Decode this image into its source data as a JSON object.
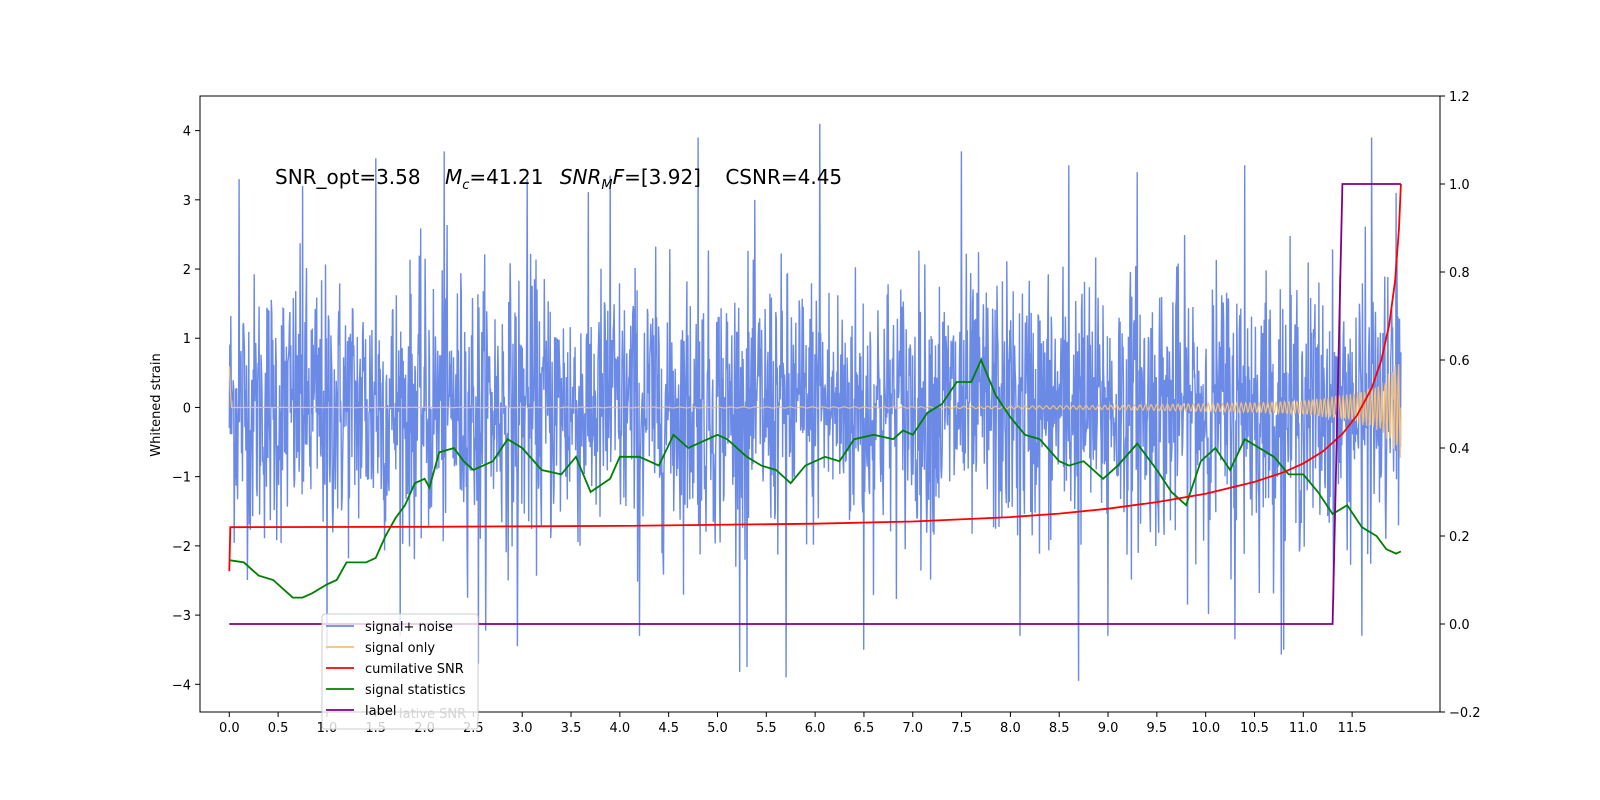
{
  "chart_data": {
    "type": "line",
    "title": "",
    "annotation": {
      "snr_opt": "SNR_opt=3.58",
      "mc_symbol": "M",
      "mc_sub": "c",
      "mc_value": "=41.21",
      "snrmf_symbol": "SNR",
      "snrmf_sub": "M",
      "snrmf_tail": "F",
      "snrmf_value": "=[3.92]",
      "csnr": "CSNR=4.45"
    },
    "ylabel": "Whitened strain",
    "xlabel": "",
    "x_ticks": [
      "0.0",
      "0.5",
      "1.0",
      "1.5",
      "2.0",
      "2.5",
      "3.0",
      "3.5",
      "4.0",
      "4.5",
      "5.0",
      "5.5",
      "6.0",
      "6.5",
      "7.0",
      "7.5",
      "8.0",
      "8.5",
      "9.0",
      "9.5",
      "10.0",
      "10.5",
      "11.0",
      "11.5"
    ],
    "y_left_ticks": [
      "−4",
      "−3",
      "−2",
      "−1",
      "0",
      "1",
      "2",
      "3",
      "4"
    ],
    "y_right_ticks": [
      "−0.2",
      "0.0",
      "0.2",
      "0.4",
      "0.6",
      "0.8",
      "1.0",
      "1.2"
    ],
    "xlim": [
      -0.3,
      12.4
    ],
    "ylim_left": [
      -4.4,
      4.5
    ],
    "ylim_right": [
      -0.2,
      1.2
    ],
    "grid": false,
    "legend_position": "lower-left",
    "legend": [
      {
        "label": "signal+ noise",
        "color": "#6b8ae6"
      },
      {
        "label": "signal only",
        "color": "#f5c07a"
      },
      {
        "label": "cumilative SNR",
        "color": "#ff0000"
      },
      {
        "label": "signal statistics",
        "color": "#008000"
      },
      {
        "label": "label",
        "color": "#800080"
      }
    ],
    "legend_ghost_text": "lative SNR",
    "series": [
      {
        "name": "signal+ noise",
        "axis": "left",
        "color": "#6b8ae6",
        "x_range": [
          0.0,
          12.0
        ],
        "envelope_typical": [
          -2.0,
          2.2
        ],
        "extreme_spikes": [
          {
            "x": 0.1,
            "y": 3.3
          },
          {
            "x": 0.75,
            "y": 3.2
          },
          {
            "x": 1.5,
            "y": 3.6
          },
          {
            "x": 2.2,
            "y": 3.7
          },
          {
            "x": 3.05,
            "y": 3.3
          },
          {
            "x": 3.9,
            "y": 3.35
          },
          {
            "x": 4.8,
            "y": 3.9
          },
          {
            "x": 6.05,
            "y": 4.1
          },
          {
            "x": 7.5,
            "y": 3.7
          },
          {
            "x": 8.6,
            "y": 3.5
          },
          {
            "x": 9.3,
            "y": 3.4
          },
          {
            "x": 10.4,
            "y": 3.5
          },
          {
            "x": 11.7,
            "y": 3.9
          },
          {
            "x": 11.95,
            "y": 3.1
          },
          {
            "x": 1.0,
            "y": -3.5
          },
          {
            "x": 2.55,
            "y": -3.7
          },
          {
            "x": 2.95,
            "y": -3.45
          },
          {
            "x": 4.2,
            "y": -3.3
          },
          {
            "x": 5.3,
            "y": -3.75
          },
          {
            "x": 5.7,
            "y": -3.9
          },
          {
            "x": 6.5,
            "y": -3.5
          },
          {
            "x": 8.1,
            "y": -3.3
          },
          {
            "x": 8.7,
            "y": -3.95
          },
          {
            "x": 9.0,
            "y": -3.3
          },
          {
            "x": 10.3,
            "y": -3.35
          },
          {
            "x": 10.8,
            "y": -3.5
          },
          {
            "x": 11.6,
            "y": -3.3
          }
        ]
      },
      {
        "name": "signal only",
        "axis": "left",
        "color": "#f5c07a",
        "x_range": [
          0.0,
          12.0
        ],
        "description_points": [
          {
            "x": 0.0,
            "amp": 0.6
          },
          {
            "x": 0.02,
            "amp": 0.0
          },
          {
            "x": 7.0,
            "amp": 0.01
          },
          {
            "x": 9.0,
            "amp": 0.03
          },
          {
            "x": 10.5,
            "amp": 0.07
          },
          {
            "x": 11.0,
            "amp": 0.1
          },
          {
            "x": 11.5,
            "amp": 0.2
          },
          {
            "x": 11.8,
            "amp": 0.35
          },
          {
            "x": 12.0,
            "amp": 0.75
          }
        ]
      },
      {
        "name": "cumilative SNR",
        "axis": "right",
        "color": "#ff0000",
        "points": [
          [
            0.0,
            0.12
          ],
          [
            0.01,
            0.22
          ],
          [
            2.0,
            0.221
          ],
          [
            4.0,
            0.223
          ],
          [
            6.0,
            0.228
          ],
          [
            7.0,
            0.233
          ],
          [
            8.0,
            0.243
          ],
          [
            8.5,
            0.251
          ],
          [
            9.0,
            0.262
          ],
          [
            9.5,
            0.277
          ],
          [
            10.0,
            0.296
          ],
          [
            10.5,
            0.323
          ],
          [
            10.8,
            0.345
          ],
          [
            11.0,
            0.365
          ],
          [
            11.2,
            0.392
          ],
          [
            11.4,
            0.432
          ],
          [
            11.55,
            0.474
          ],
          [
            11.7,
            0.536
          ],
          [
            11.8,
            0.6
          ],
          [
            11.88,
            0.68
          ],
          [
            11.94,
            0.78
          ],
          [
            11.98,
            0.9
          ],
          [
            12.0,
            1.0
          ]
        ]
      },
      {
        "name": "signal statistics",
        "axis": "right",
        "color": "#008000",
        "points": [
          [
            0.0,
            0.145
          ],
          [
            0.15,
            0.14
          ],
          [
            0.3,
            0.11
          ],
          [
            0.45,
            0.1
          ],
          [
            0.55,
            0.08
          ],
          [
            0.65,
            0.06
          ],
          [
            0.75,
            0.06
          ],
          [
            0.85,
            0.07
          ],
          [
            1.0,
            0.09
          ],
          [
            1.1,
            0.1
          ],
          [
            1.2,
            0.14
          ],
          [
            1.3,
            0.14
          ],
          [
            1.4,
            0.14
          ],
          [
            1.5,
            0.15
          ],
          [
            1.6,
            0.2
          ],
          [
            1.7,
            0.24
          ],
          [
            1.8,
            0.27
          ],
          [
            1.9,
            0.32
          ],
          [
            2.0,
            0.33
          ],
          [
            2.05,
            0.31
          ],
          [
            2.15,
            0.39
          ],
          [
            2.3,
            0.4
          ],
          [
            2.4,
            0.37
          ],
          [
            2.5,
            0.35
          ],
          [
            2.7,
            0.37
          ],
          [
            2.85,
            0.42
          ],
          [
            3.0,
            0.4
          ],
          [
            3.2,
            0.35
          ],
          [
            3.4,
            0.34
          ],
          [
            3.55,
            0.38
          ],
          [
            3.7,
            0.3
          ],
          [
            3.9,
            0.33
          ],
          [
            4.0,
            0.38
          ],
          [
            4.2,
            0.38
          ],
          [
            4.4,
            0.36
          ],
          [
            4.55,
            0.43
          ],
          [
            4.7,
            0.4
          ],
          [
            4.9,
            0.42
          ],
          [
            5.0,
            0.43
          ],
          [
            5.1,
            0.42
          ],
          [
            5.3,
            0.38
          ],
          [
            5.45,
            0.36
          ],
          [
            5.6,
            0.35
          ],
          [
            5.75,
            0.32
          ],
          [
            5.9,
            0.36
          ],
          [
            6.1,
            0.38
          ],
          [
            6.25,
            0.37
          ],
          [
            6.4,
            0.42
          ],
          [
            6.6,
            0.43
          ],
          [
            6.8,
            0.42
          ],
          [
            6.9,
            0.44
          ],
          [
            7.0,
            0.43
          ],
          [
            7.15,
            0.48
          ],
          [
            7.3,
            0.5
          ],
          [
            7.45,
            0.55
          ],
          [
            7.6,
            0.55
          ],
          [
            7.7,
            0.6
          ],
          [
            7.85,
            0.52
          ],
          [
            8.0,
            0.47
          ],
          [
            8.15,
            0.43
          ],
          [
            8.3,
            0.42
          ],
          [
            8.5,
            0.37
          ],
          [
            8.6,
            0.36
          ],
          [
            8.75,
            0.37
          ],
          [
            8.95,
            0.33
          ],
          [
            9.1,
            0.36
          ],
          [
            9.3,
            0.41
          ],
          [
            9.5,
            0.35
          ],
          [
            9.65,
            0.3
          ],
          [
            9.8,
            0.27
          ],
          [
            9.95,
            0.37
          ],
          [
            10.1,
            0.4
          ],
          [
            10.25,
            0.35
          ],
          [
            10.4,
            0.42
          ],
          [
            10.55,
            0.4
          ],
          [
            10.7,
            0.38
          ],
          [
            10.85,
            0.34
          ],
          [
            11.0,
            0.34
          ],
          [
            11.15,
            0.3
          ],
          [
            11.3,
            0.25
          ],
          [
            11.45,
            0.27
          ],
          [
            11.6,
            0.22
          ],
          [
            11.75,
            0.2
          ],
          [
            11.85,
            0.17
          ],
          [
            11.95,
            0.16
          ],
          [
            12.0,
            0.165
          ]
        ]
      },
      {
        "name": "label",
        "axis": "right",
        "color": "#800080",
        "points": [
          [
            0.0,
            0.0
          ],
          [
            11.3,
            0.0
          ],
          [
            11.4,
            1.0
          ],
          [
            12.0,
            1.0
          ]
        ]
      }
    ]
  }
}
